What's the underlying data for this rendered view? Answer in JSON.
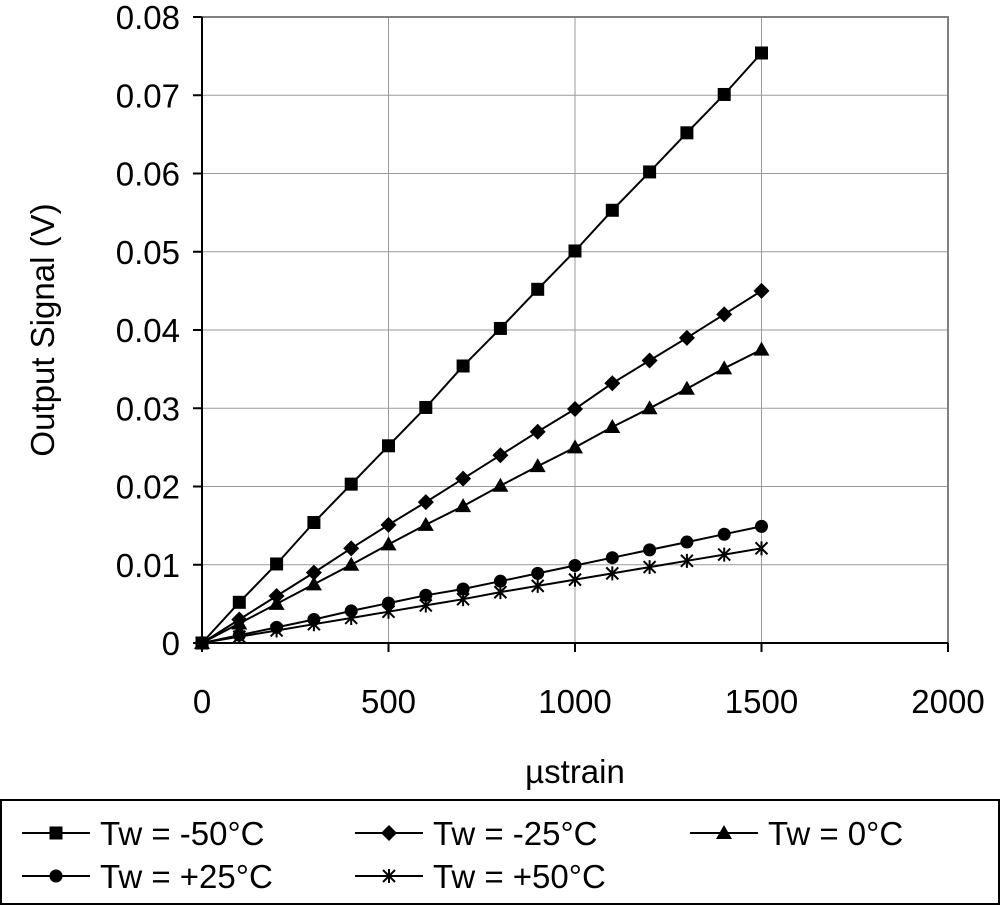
{
  "chart_data": {
    "type": "line",
    "title": "",
    "xlabel": "µstrain",
    "ylabel": "Output Signal (V)",
    "xlim": [
      0,
      2000
    ],
    "ylim": [
      0,
      0.08
    ],
    "xticks": [
      0,
      500,
      1000,
      1500,
      2000
    ],
    "xtick_labels": [
      "0",
      "500",
      "1000",
      "1500",
      "2000"
    ],
    "yticks": [
      0,
      0.01,
      0.02,
      0.03,
      0.04,
      0.05,
      0.06,
      0.07,
      0.08
    ],
    "ytick_labels": [
      "0",
      "0.01",
      "0.02",
      "0.03",
      "0.04",
      "0.05",
      "0.06",
      "0.07",
      "0.08"
    ],
    "grid": true,
    "legend_position": "bottom",
    "x": [
      0,
      100,
      200,
      300,
      400,
      500,
      600,
      700,
      800,
      900,
      1000,
      1100,
      1200,
      1300,
      1400,
      1500
    ],
    "series": [
      {
        "name": "Tw = -50°C",
        "marker": "square",
        "values": [
          0,
          0.0052,
          0.0101,
          0.0154,
          0.0203,
          0.0252,
          0.0301,
          0.0354,
          0.0402,
          0.0452,
          0.0501,
          0.0553,
          0.0602,
          0.0652,
          0.0701,
          0.0754
        ]
      },
      {
        "name": "Tw = -25°C",
        "marker": "diamond",
        "values": [
          0,
          0.003,
          0.006,
          0.009,
          0.0121,
          0.0151,
          0.018,
          0.021,
          0.024,
          0.027,
          0.0299,
          0.0332,
          0.0361,
          0.039,
          0.042,
          0.045
        ]
      },
      {
        "name": "Tw = 0°C",
        "marker": "triangle",
        "values": [
          0,
          0.0025,
          0.005,
          0.0075,
          0.01,
          0.0126,
          0.0151,
          0.0175,
          0.0201,
          0.0226,
          0.025,
          0.0276,
          0.03,
          0.0325,
          0.0351,
          0.0375
        ]
      },
      {
        "name": "Tw = +25°C",
        "marker": "circle",
        "values": [
          0,
          0.001,
          0.002,
          0.003,
          0.0041,
          0.0051,
          0.0061,
          0.0069,
          0.0079,
          0.0089,
          0.0099,
          0.0109,
          0.0119,
          0.0129,
          0.0139,
          0.0149
        ]
      },
      {
        "name": "Tw = +50°C",
        "marker": "star",
        "values": [
          0,
          0.0008,
          0.0016,
          0.0024,
          0.0032,
          0.004,
          0.0048,
          0.0056,
          0.0065,
          0.0073,
          0.0081,
          0.0089,
          0.0097,
          0.0105,
          0.0113,
          0.0121
        ]
      }
    ]
  }
}
